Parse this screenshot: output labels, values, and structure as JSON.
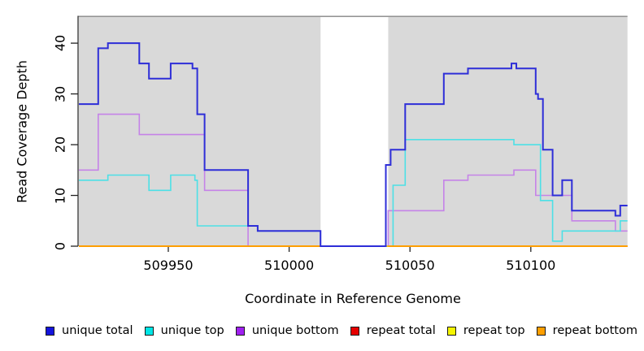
{
  "chart_data": {
    "type": "line",
    "subtype": "step",
    "title": "",
    "xlabel": "Coordinate in Reference Genome",
    "ylabel": "Read Coverage Depth",
    "xlim": [
      509913,
      510140
    ],
    "ylim": [
      0,
      45.3
    ],
    "x_ticks": [
      509950,
      510000,
      510050,
      510100
    ],
    "y_ticks": [
      0,
      10,
      20,
      30,
      40
    ],
    "grid": false,
    "plot_background": "#ffffff",
    "covered_region_color": "#d9d9d9",
    "covered_regions": [
      {
        "x0": 509913,
        "x1": 510013
      },
      {
        "x0": 510041,
        "x1": 510140
      }
    ],
    "uncovered_gap": {
      "x0": 510013,
      "x1": 510041
    },
    "series": [
      {
        "name": "unique bottom",
        "color": "#c583e8",
        "line_width": 1.6,
        "steps": [
          [
            509913,
            15
          ],
          [
            509921,
            26
          ],
          [
            509938,
            22
          ],
          [
            509965,
            11
          ],
          [
            509983,
            0
          ],
          [
            510041,
            7
          ],
          [
            510064,
            13
          ],
          [
            510074,
            14
          ],
          [
            510093,
            15
          ],
          [
            510102,
            10
          ],
          [
            510117,
            5
          ],
          [
            510135,
            3
          ]
        ]
      },
      {
        "name": "unique top",
        "color": "#4de0e6",
        "line_width": 1.6,
        "steps": [
          [
            509913,
            13
          ],
          [
            509925,
            14
          ],
          [
            509942,
            11
          ],
          [
            509951,
            14
          ],
          [
            509961,
            13
          ],
          [
            509962,
            4
          ],
          [
            509987,
            3
          ],
          [
            510013,
            0
          ],
          [
            510043,
            12
          ],
          [
            510048,
            21
          ],
          [
            510093,
            20
          ],
          [
            510104,
            9
          ],
          [
            510109,
            1
          ],
          [
            510113,
            3
          ],
          [
            510137,
            5
          ]
        ]
      },
      {
        "name": "repeat total",
        "color": "#dd0000",
        "line_width": 1.4,
        "steps": [
          [
            509913,
            0
          ]
        ]
      },
      {
        "name": "repeat top",
        "color": "#f0e800",
        "line_width": 1.4,
        "steps": [
          [
            509913,
            0
          ]
        ]
      },
      {
        "name": "repeat bottom",
        "color": "#ff9e00",
        "line_width": 2,
        "steps": [
          [
            509913,
            0
          ]
        ],
        "segments": [
          [
            509913,
            510013
          ],
          [
            510041,
            510140
          ]
        ]
      },
      {
        "name": "unique total",
        "color": "#2e2ed8",
        "line_width": 2,
        "steps": [
          [
            509913,
            28
          ],
          [
            509921,
            39
          ],
          [
            509925,
            40
          ],
          [
            509938,
            36
          ],
          [
            509942,
            33
          ],
          [
            509951,
            36
          ],
          [
            509960,
            35
          ],
          [
            509962,
            26
          ],
          [
            509965,
            15
          ],
          [
            509983,
            4
          ],
          [
            509987,
            3
          ],
          [
            510013,
            0
          ],
          [
            510040,
            16
          ],
          [
            510042,
            19
          ],
          [
            510048,
            28
          ],
          [
            510064,
            34
          ],
          [
            510074,
            35
          ],
          [
            510092,
            36
          ],
          [
            510094,
            35
          ],
          [
            510102,
            30
          ],
          [
            510103,
            29
          ],
          [
            510105,
            19
          ],
          [
            510109,
            10
          ],
          [
            510113,
            13
          ],
          [
            510117,
            7
          ],
          [
            510135,
            6
          ],
          [
            510137,
            8
          ]
        ]
      }
    ],
    "legend": [
      {
        "label": "unique total",
        "color": "#1414dd"
      },
      {
        "label": "unique top",
        "color": "#00e6e6"
      },
      {
        "label": "unique bottom",
        "color": "#a020f0"
      },
      {
        "label": "repeat total",
        "color": "#e60000"
      },
      {
        "label": "repeat top",
        "color": "#f5f500"
      },
      {
        "label": "repeat bottom",
        "color": "#ff9f00"
      }
    ],
    "legend_position": "bottom"
  }
}
